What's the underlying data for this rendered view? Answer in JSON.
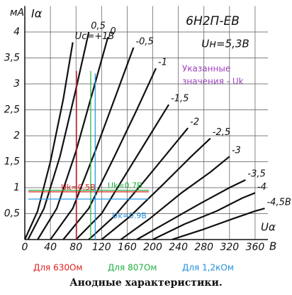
{
  "chart_data": {
    "type": "line",
    "y_unit": "мА",
    "y_label": "Iα",
    "x_label": "Uα",
    "x_unit": "В",
    "title": "6Н2П-ЕВ",
    "subtitle": "Uн=5,3В",
    "annotation": [
      "Указанные",
      "значения - Uk"
    ],
    "caption": "Анодные характеристики.",
    "xlim": [
      0,
      380
    ],
    "ylim": [
      0,
      4.5
    ],
    "xticks": [
      0,
      40,
      80,
      120,
      160,
      200,
      240,
      280,
      320,
      360
    ],
    "yticks": [
      {
        "value": 0.5,
        "label": "0,5"
      },
      1,
      {
        "value": 1.5,
        "label": "1,5"
      },
      2,
      {
        "value": 2.5,
        "label": "2,5"
      },
      3,
      {
        "value": 3.5,
        "label": "3,5"
      },
      4
    ],
    "grid": true,
    "series": [
      {
        "name": "Uc=+1В",
        "color": "#111",
        "x": [
          0,
          20,
          40,
          60,
          75
        ],
        "values": [
          0,
          0.55,
          1.5,
          2.7,
          3.8
        ]
      },
      {
        "name": "0,5",
        "color": "#111",
        "x": [
          5,
          30,
          55,
          80,
          100
        ],
        "values": [
          0,
          0.6,
          1.6,
          2.9,
          4.0
        ]
      },
      {
        "name": "0",
        "color": "#111",
        "x": [
          20,
          50,
          80,
          105,
          130
        ],
        "values": [
          0,
          0.6,
          1.7,
          2.8,
          3.9
        ]
      },
      {
        "name": "-0,5",
        "color": "#111",
        "x": [
          40,
          75,
          110,
          140,
          170
        ],
        "values": [
          0,
          0.6,
          1.7,
          2.7,
          3.7
        ]
      },
      {
        "name": "-1",
        "color": "#111",
        "x": [
          60,
          100,
          140,
          175,
          205
        ],
        "values": [
          0,
          0.6,
          1.6,
          2.5,
          3.3
        ]
      },
      {
        "name": "-1,5",
        "color": "#111",
        "x": [
          80,
          120,
          160,
          195,
          225
        ],
        "values": [
          0,
          0.5,
          1.3,
          2.0,
          2.6
        ]
      },
      {
        "name": "-2",
        "color": "#111",
        "x": [
          100,
          140,
          185,
          225,
          255
        ],
        "values": [
          0,
          0.45,
          1.1,
          1.7,
          2.15
        ]
      },
      {
        "name": "-2,5",
        "color": "#111",
        "x": [
          120,
          165,
          215,
          260,
          290
        ],
        "values": [
          0,
          0.45,
          1.05,
          1.6,
          1.95
        ]
      },
      {
        "name": "-3",
        "color": "#111",
        "x": [
          150,
          195,
          245,
          290,
          320
        ],
        "values": [
          0,
          0.4,
          0.9,
          1.3,
          1.6
        ]
      },
      {
        "name": "-3,5",
        "color": "#111",
        "x": [
          175,
          225,
          275,
          320,
          345
        ],
        "values": [
          0,
          0.35,
          0.7,
          1.0,
          1.15
        ]
      },
      {
        "name": "-4",
        "color": "#111",
        "x": [
          200,
          250,
          300,
          340,
          360
        ],
        "values": [
          0,
          0.3,
          0.55,
          0.8,
          0.9
        ]
      },
      {
        "name": "-4,5В",
        "color": "#111",
        "x": [
          230,
          280,
          325,
          360,
          375
        ],
        "values": [
          0,
          0.2,
          0.4,
          0.55,
          0.6
        ]
      }
    ],
    "markers": [
      {
        "label": "Uk=0.5В",
        "legend": "Для 630Ом",
        "color": "#e02020",
        "x": 81,
        "y": 0.92,
        "y_top": 3.25
      },
      {
        "label": "Uk=0.7В",
        "legend": "Для 807Ом",
        "color": "#20b040",
        "x": 103,
        "y": 0.95,
        "y_top": 3.25
      },
      {
        "label": "Uk=0.9В",
        "legend": "Для 1,2кОм",
        "color": "#2090e0",
        "x": 110,
        "y": 0.78,
        "y_top": 3.2
      }
    ]
  }
}
